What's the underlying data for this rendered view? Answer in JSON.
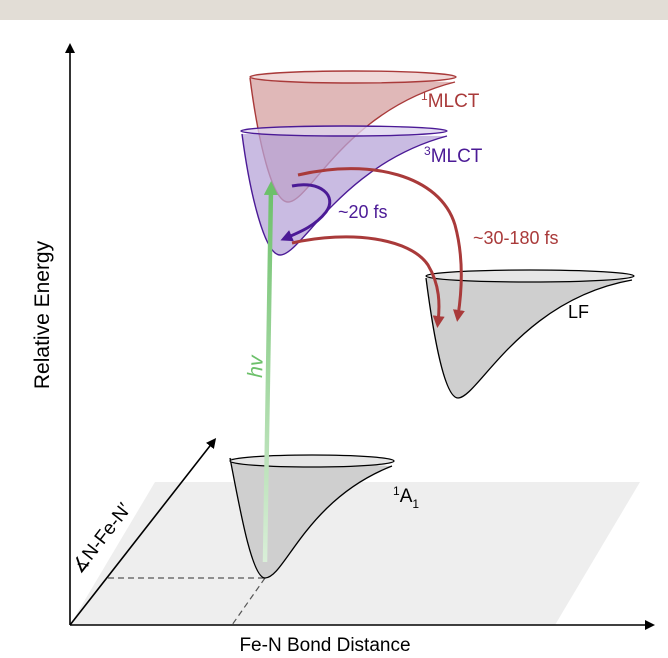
{
  "axes": {
    "x_label": "Fe-N Bond Distance",
    "y_label": "Relative Energy",
    "z_label": "∡N-Fe-N′"
  },
  "states": {
    "mlct1": {
      "label_sup": "1",
      "label_main": "MLCT"
    },
    "mlct3": {
      "label_sup": "3",
      "label_main": "MLCT"
    },
    "lf": {
      "label": "LF"
    },
    "a1": {
      "label_sup": "1",
      "label_main": "A",
      "label_sub": "1"
    }
  },
  "transitions": {
    "excitation": "hv",
    "isc": "~20 fs",
    "relax": "~30-180 fs"
  },
  "colors": {
    "mlct1": "#a93a3a",
    "mlct3": "#4b1a96",
    "excitation": "#6cc06a",
    "ground": "#c9c9c9"
  }
}
